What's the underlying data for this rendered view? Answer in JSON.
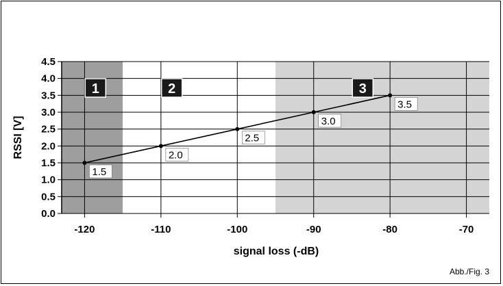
{
  "chart_data": {
    "type": "line",
    "xlabel": "signal loss (-dB)",
    "ylabel": "RSSI [V]",
    "xlim": [
      -123,
      -67
    ],
    "ylim": [
      0,
      4.5
    ],
    "x_ticks": [
      -120,
      -110,
      -100,
      -90,
      -80,
      -70
    ],
    "x_tick_labels": [
      "-120",
      "-110",
      "-100",
      "-90",
      "-80",
      "-70"
    ],
    "y_ticks": [
      0,
      0.5,
      1,
      1.5,
      2,
      2.5,
      3,
      3.5,
      4,
      4.5
    ],
    "y_tick_labels": [
      "0.0",
      "0.5",
      "1.0",
      "1.5",
      "2.0",
      "2.5",
      "3.0",
      "3.5",
      "4.0",
      "4.5"
    ],
    "grid": true,
    "series": [
      {
        "x": [
          -120,
          -110,
          -100,
          -90,
          -80
        ],
        "values": [
          1.5,
          2.0,
          2.5,
          3.0,
          3.5
        ],
        "labels": [
          "1.5",
          "2.0",
          "2.5",
          "3.0",
          "3.5"
        ],
        "color": "#000000"
      }
    ],
    "zones": [
      {
        "label": "1",
        "x_range": [
          -123,
          -115
        ],
        "fill": "#9e9e9e"
      },
      {
        "label": "2",
        "x_range": [
          -115,
          -95
        ],
        "fill": "#ffffff"
      },
      {
        "label": "3",
        "x_range": [
          -95,
          -67
        ],
        "fill": "#d4d4d4"
      }
    ],
    "zone_badge_color": "#1a1a1a"
  },
  "caption": "Abb./Fig. 3"
}
